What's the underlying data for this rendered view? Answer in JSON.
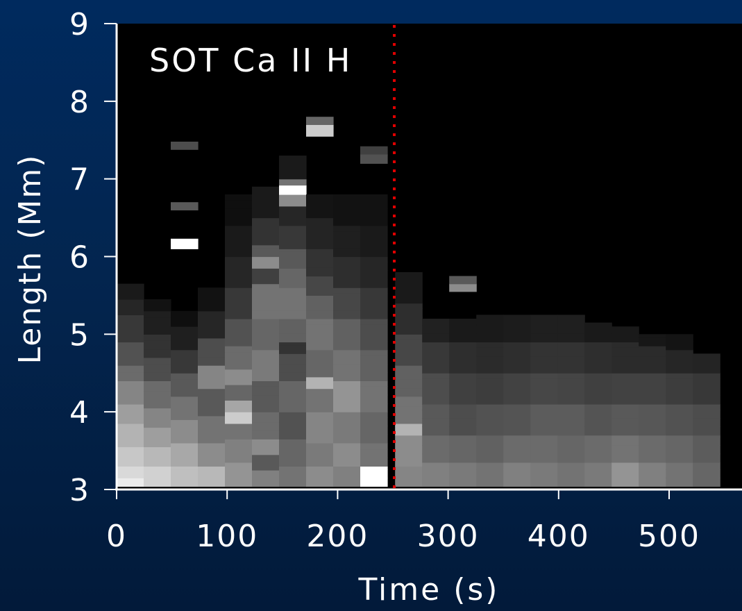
{
  "chart_data": {
    "type": "heatmap",
    "annotation": "SOT Ca II H",
    "xlabel": "Time (s)",
    "ylabel": "Length (Mm)",
    "xlim": [
      0,
      570
    ],
    "ylim": [
      3,
      9
    ],
    "xticks": [
      0,
      100,
      200,
      300,
      400,
      500
    ],
    "yticks": [
      3,
      4,
      5,
      6,
      7,
      8,
      9
    ],
    "colormap": "grayscale",
    "marker_line": {
      "x": 252,
      "style": "dotted",
      "color": "#e00000"
    },
    "grid": false,
    "cell_time": 24.5,
    "cell_length": 0.11,
    "columns": [
      {
        "t": 0,
        "cells": [
          [
            3.04,
            3.15,
            0.92
          ],
          [
            3.15,
            3.3,
            0.85
          ],
          [
            3.3,
            3.55,
            0.78
          ],
          [
            3.55,
            3.85,
            0.7
          ],
          [
            3.85,
            4.1,
            0.62
          ],
          [
            4.1,
            4.4,
            0.52
          ],
          [
            4.4,
            4.6,
            0.42
          ],
          [
            4.6,
            4.9,
            0.32
          ],
          [
            4.9,
            5.25,
            0.22
          ],
          [
            5.25,
            5.45,
            0.15
          ],
          [
            5.45,
            5.65,
            0.1
          ]
        ]
      },
      {
        "t": 24.5,
        "cells": [
          [
            3.04,
            3.3,
            0.82
          ],
          [
            3.3,
            3.55,
            0.72
          ],
          [
            3.55,
            3.8,
            0.62
          ],
          [
            3.8,
            4.05,
            0.52
          ],
          [
            4.05,
            4.4,
            0.42
          ],
          [
            4.4,
            4.7,
            0.3
          ],
          [
            4.7,
            5.0,
            0.2
          ],
          [
            5.0,
            5.3,
            0.12
          ],
          [
            5.3,
            5.45,
            0.07
          ]
        ]
      },
      {
        "t": 49,
        "cells": [
          [
            3.04,
            3.3,
            0.75
          ],
          [
            3.3,
            3.6,
            0.66
          ],
          [
            3.6,
            3.9,
            0.55
          ],
          [
            3.9,
            4.2,
            0.45
          ],
          [
            4.2,
            4.5,
            0.35
          ],
          [
            4.5,
            4.8,
            0.22
          ],
          [
            4.8,
            5.1,
            0.12
          ],
          [
            5.1,
            5.3,
            0.06
          ],
          [
            6.1,
            6.23,
            1.0
          ],
          [
            6.6,
            6.7,
            0.35
          ],
          [
            7.38,
            7.48,
            0.3
          ]
        ]
      },
      {
        "t": 73.5,
        "cells": [
          [
            3.04,
            3.3,
            0.72
          ],
          [
            3.3,
            3.6,
            0.55
          ],
          [
            3.6,
            3.95,
            0.45
          ],
          [
            3.95,
            4.3,
            0.35
          ],
          [
            4.3,
            4.6,
            0.52
          ],
          [
            4.6,
            4.95,
            0.3
          ],
          [
            4.95,
            5.3,
            0.15
          ],
          [
            5.3,
            5.6,
            0.07
          ]
        ]
      },
      {
        "t": 98,
        "cells": [
          [
            3.04,
            3.35,
            0.58
          ],
          [
            3.35,
            3.65,
            0.5
          ],
          [
            3.65,
            3.85,
            0.45
          ],
          [
            3.85,
            4.0,
            0.8
          ],
          [
            4.0,
            4.15,
            0.65
          ],
          [
            4.15,
            4.35,
            0.4
          ],
          [
            4.35,
            4.55,
            0.55
          ],
          [
            4.55,
            4.85,
            0.42
          ],
          [
            4.85,
            5.2,
            0.32
          ],
          [
            5.2,
            5.6,
            0.22
          ],
          [
            5.6,
            6.0,
            0.15
          ],
          [
            6.0,
            6.4,
            0.1
          ],
          [
            6.4,
            6.8,
            0.06
          ]
        ]
      },
      {
        "t": 122.5,
        "cells": [
          [
            3.04,
            3.25,
            0.5
          ],
          [
            3.25,
            3.45,
            0.35
          ],
          [
            3.45,
            3.65,
            0.55
          ],
          [
            3.65,
            4.0,
            0.42
          ],
          [
            4.0,
            4.4,
            0.35
          ],
          [
            4.4,
            4.8,
            0.48
          ],
          [
            4.8,
            5.2,
            0.4
          ],
          [
            5.2,
            5.65,
            0.45
          ],
          [
            5.65,
            5.85,
            0.25
          ],
          [
            5.85,
            6.0,
            0.55
          ],
          [
            6.0,
            6.15,
            0.35
          ],
          [
            6.15,
            6.5,
            0.2
          ],
          [
            6.5,
            6.9,
            0.1
          ]
        ]
      },
      {
        "t": 147,
        "cells": [
          [
            3.04,
            3.3,
            0.45
          ],
          [
            3.3,
            3.65,
            0.4
          ],
          [
            3.65,
            4.0,
            0.32
          ],
          [
            4.0,
            4.4,
            0.4
          ],
          [
            4.4,
            4.75,
            0.3
          ],
          [
            4.75,
            4.9,
            0.2
          ],
          [
            4.9,
            5.2,
            0.38
          ],
          [
            5.2,
            5.6,
            0.45
          ],
          [
            5.6,
            5.85,
            0.4
          ],
          [
            5.85,
            6.1,
            0.35
          ],
          [
            6.1,
            6.4,
            0.22
          ],
          [
            6.4,
            6.65,
            0.15
          ],
          [
            6.65,
            6.8,
            0.55
          ],
          [
            6.8,
            6.92,
            1.0
          ],
          [
            6.92,
            7.0,
            0.45
          ],
          [
            7.0,
            7.3,
            0.1
          ]
        ]
      },
      {
        "t": 171.5,
        "cells": [
          [
            3.04,
            3.3,
            0.55
          ],
          [
            3.3,
            3.6,
            0.48
          ],
          [
            3.6,
            4.0,
            0.52
          ],
          [
            4.0,
            4.3,
            0.45
          ],
          [
            4.3,
            4.45,
            0.7
          ],
          [
            4.45,
            4.8,
            0.4
          ],
          [
            4.8,
            5.2,
            0.45
          ],
          [
            5.2,
            5.5,
            0.38
          ],
          [
            5.5,
            5.75,
            0.28
          ],
          [
            5.75,
            6.1,
            0.2
          ],
          [
            6.1,
            6.5,
            0.14
          ],
          [
            6.5,
            6.8,
            0.08
          ],
          [
            7.55,
            7.7,
            0.8
          ],
          [
            7.7,
            7.8,
            0.4
          ]
        ]
      },
      {
        "t": 196,
        "cells": [
          [
            3.04,
            3.3,
            0.5
          ],
          [
            3.3,
            3.6,
            0.55
          ],
          [
            3.6,
            4.0,
            0.48
          ],
          [
            4.0,
            4.4,
            0.58
          ],
          [
            4.4,
            4.8,
            0.45
          ],
          [
            4.8,
            5.2,
            0.38
          ],
          [
            5.2,
            5.6,
            0.28
          ],
          [
            5.6,
            6.0,
            0.18
          ],
          [
            6.0,
            6.4,
            0.12
          ],
          [
            6.4,
            6.8,
            0.07
          ]
        ]
      },
      {
        "t": 220.5,
        "cells": [
          [
            3.04,
            3.3,
            1.0
          ],
          [
            3.3,
            3.6,
            0.45
          ],
          [
            3.6,
            4.0,
            0.4
          ],
          [
            4.0,
            4.4,
            0.45
          ],
          [
            4.4,
            4.8,
            0.38
          ],
          [
            4.8,
            5.2,
            0.3
          ],
          [
            5.2,
            5.6,
            0.22
          ],
          [
            5.6,
            6.0,
            0.15
          ],
          [
            6.0,
            6.4,
            0.1
          ],
          [
            6.4,
            6.8,
            0.07
          ],
          [
            7.2,
            7.32,
            0.32
          ],
          [
            7.32,
            7.42,
            0.25
          ]
        ]
      },
      {
        "t": 252,
        "cells": [
          [
            3.04,
            3.3,
            0.52
          ],
          [
            3.3,
            3.7,
            0.55
          ],
          [
            3.7,
            3.85,
            0.7
          ],
          [
            3.85,
            4.2,
            0.45
          ],
          [
            4.2,
            4.6,
            0.38
          ],
          [
            4.6,
            5.0,
            0.28
          ],
          [
            5.0,
            5.4,
            0.18
          ],
          [
            5.4,
            5.8,
            0.1
          ]
        ]
      },
      {
        "t": 276.5,
        "cells": [
          [
            3.04,
            3.35,
            0.5
          ],
          [
            3.35,
            3.7,
            0.42
          ],
          [
            3.7,
            4.1,
            0.35
          ],
          [
            4.1,
            4.5,
            0.3
          ],
          [
            4.5,
            4.9,
            0.22
          ],
          [
            4.9,
            5.2,
            0.13
          ]
        ]
      },
      {
        "t": 301,
        "cells": [
          [
            3.04,
            3.35,
            0.48
          ],
          [
            3.35,
            3.7,
            0.4
          ],
          [
            3.7,
            4.1,
            0.3
          ],
          [
            4.1,
            4.5,
            0.25
          ],
          [
            4.5,
            4.9,
            0.18
          ],
          [
            4.9,
            5.2,
            0.1
          ],
          [
            5.55,
            5.65,
            0.55
          ],
          [
            5.65,
            5.75,
            0.35
          ]
        ]
      },
      {
        "t": 325.5,
        "cells": [
          [
            3.04,
            3.35,
            0.45
          ],
          [
            3.35,
            3.7,
            0.38
          ],
          [
            3.7,
            4.1,
            0.32
          ],
          [
            4.1,
            4.5,
            0.24
          ],
          [
            4.5,
            4.9,
            0.17
          ],
          [
            4.9,
            5.25,
            0.1
          ]
        ]
      },
      {
        "t": 350,
        "cells": [
          [
            3.04,
            3.35,
            0.5
          ],
          [
            3.35,
            3.7,
            0.42
          ],
          [
            3.7,
            4.1,
            0.33
          ],
          [
            4.1,
            4.5,
            0.26
          ],
          [
            4.5,
            4.9,
            0.18
          ],
          [
            4.9,
            5.25,
            0.11
          ]
        ]
      },
      {
        "t": 374.5,
        "cells": [
          [
            3.04,
            3.35,
            0.48
          ],
          [
            3.35,
            3.7,
            0.42
          ],
          [
            3.7,
            4.1,
            0.36
          ],
          [
            4.1,
            4.5,
            0.28
          ],
          [
            4.5,
            4.9,
            0.2
          ],
          [
            4.9,
            5.25,
            0.12
          ]
        ]
      },
      {
        "t": 399,
        "cells": [
          [
            3.04,
            3.35,
            0.45
          ],
          [
            3.35,
            3.7,
            0.4
          ],
          [
            3.7,
            4.1,
            0.36
          ],
          [
            4.1,
            4.5,
            0.27
          ],
          [
            4.5,
            4.9,
            0.2
          ],
          [
            4.9,
            5.25,
            0.12
          ]
        ]
      },
      {
        "t": 423.5,
        "cells": [
          [
            3.04,
            3.35,
            0.48
          ],
          [
            3.35,
            3.7,
            0.42
          ],
          [
            3.7,
            4.1,
            0.33
          ],
          [
            4.1,
            4.5,
            0.25
          ],
          [
            4.5,
            4.9,
            0.18
          ],
          [
            4.9,
            5.15,
            0.1
          ]
        ]
      },
      {
        "t": 448,
        "cells": [
          [
            3.04,
            3.35,
            0.58
          ],
          [
            3.35,
            3.7,
            0.45
          ],
          [
            3.7,
            4.1,
            0.35
          ],
          [
            4.1,
            4.5,
            0.26
          ],
          [
            4.5,
            4.9,
            0.17
          ],
          [
            4.9,
            5.1,
            0.1
          ]
        ]
      },
      {
        "t": 472.5,
        "cells": [
          [
            3.04,
            3.35,
            0.5
          ],
          [
            3.35,
            3.7,
            0.42
          ],
          [
            3.7,
            4.1,
            0.34
          ],
          [
            4.1,
            4.5,
            0.26
          ],
          [
            4.5,
            4.85,
            0.17
          ],
          [
            4.85,
            5.0,
            0.09
          ]
        ]
      },
      {
        "t": 497,
        "cells": [
          [
            3.04,
            3.35,
            0.45
          ],
          [
            3.35,
            3.7,
            0.4
          ],
          [
            3.7,
            4.1,
            0.32
          ],
          [
            4.1,
            4.5,
            0.24
          ],
          [
            4.5,
            4.8,
            0.15
          ],
          [
            4.8,
            5.0,
            0.08
          ]
        ]
      },
      {
        "t": 521.5,
        "cells": [
          [
            3.04,
            3.35,
            0.4
          ],
          [
            3.35,
            3.7,
            0.36
          ],
          [
            3.7,
            4.1,
            0.3
          ],
          [
            4.1,
            4.5,
            0.22
          ],
          [
            4.5,
            4.75,
            0.14
          ]
        ]
      }
    ]
  }
}
